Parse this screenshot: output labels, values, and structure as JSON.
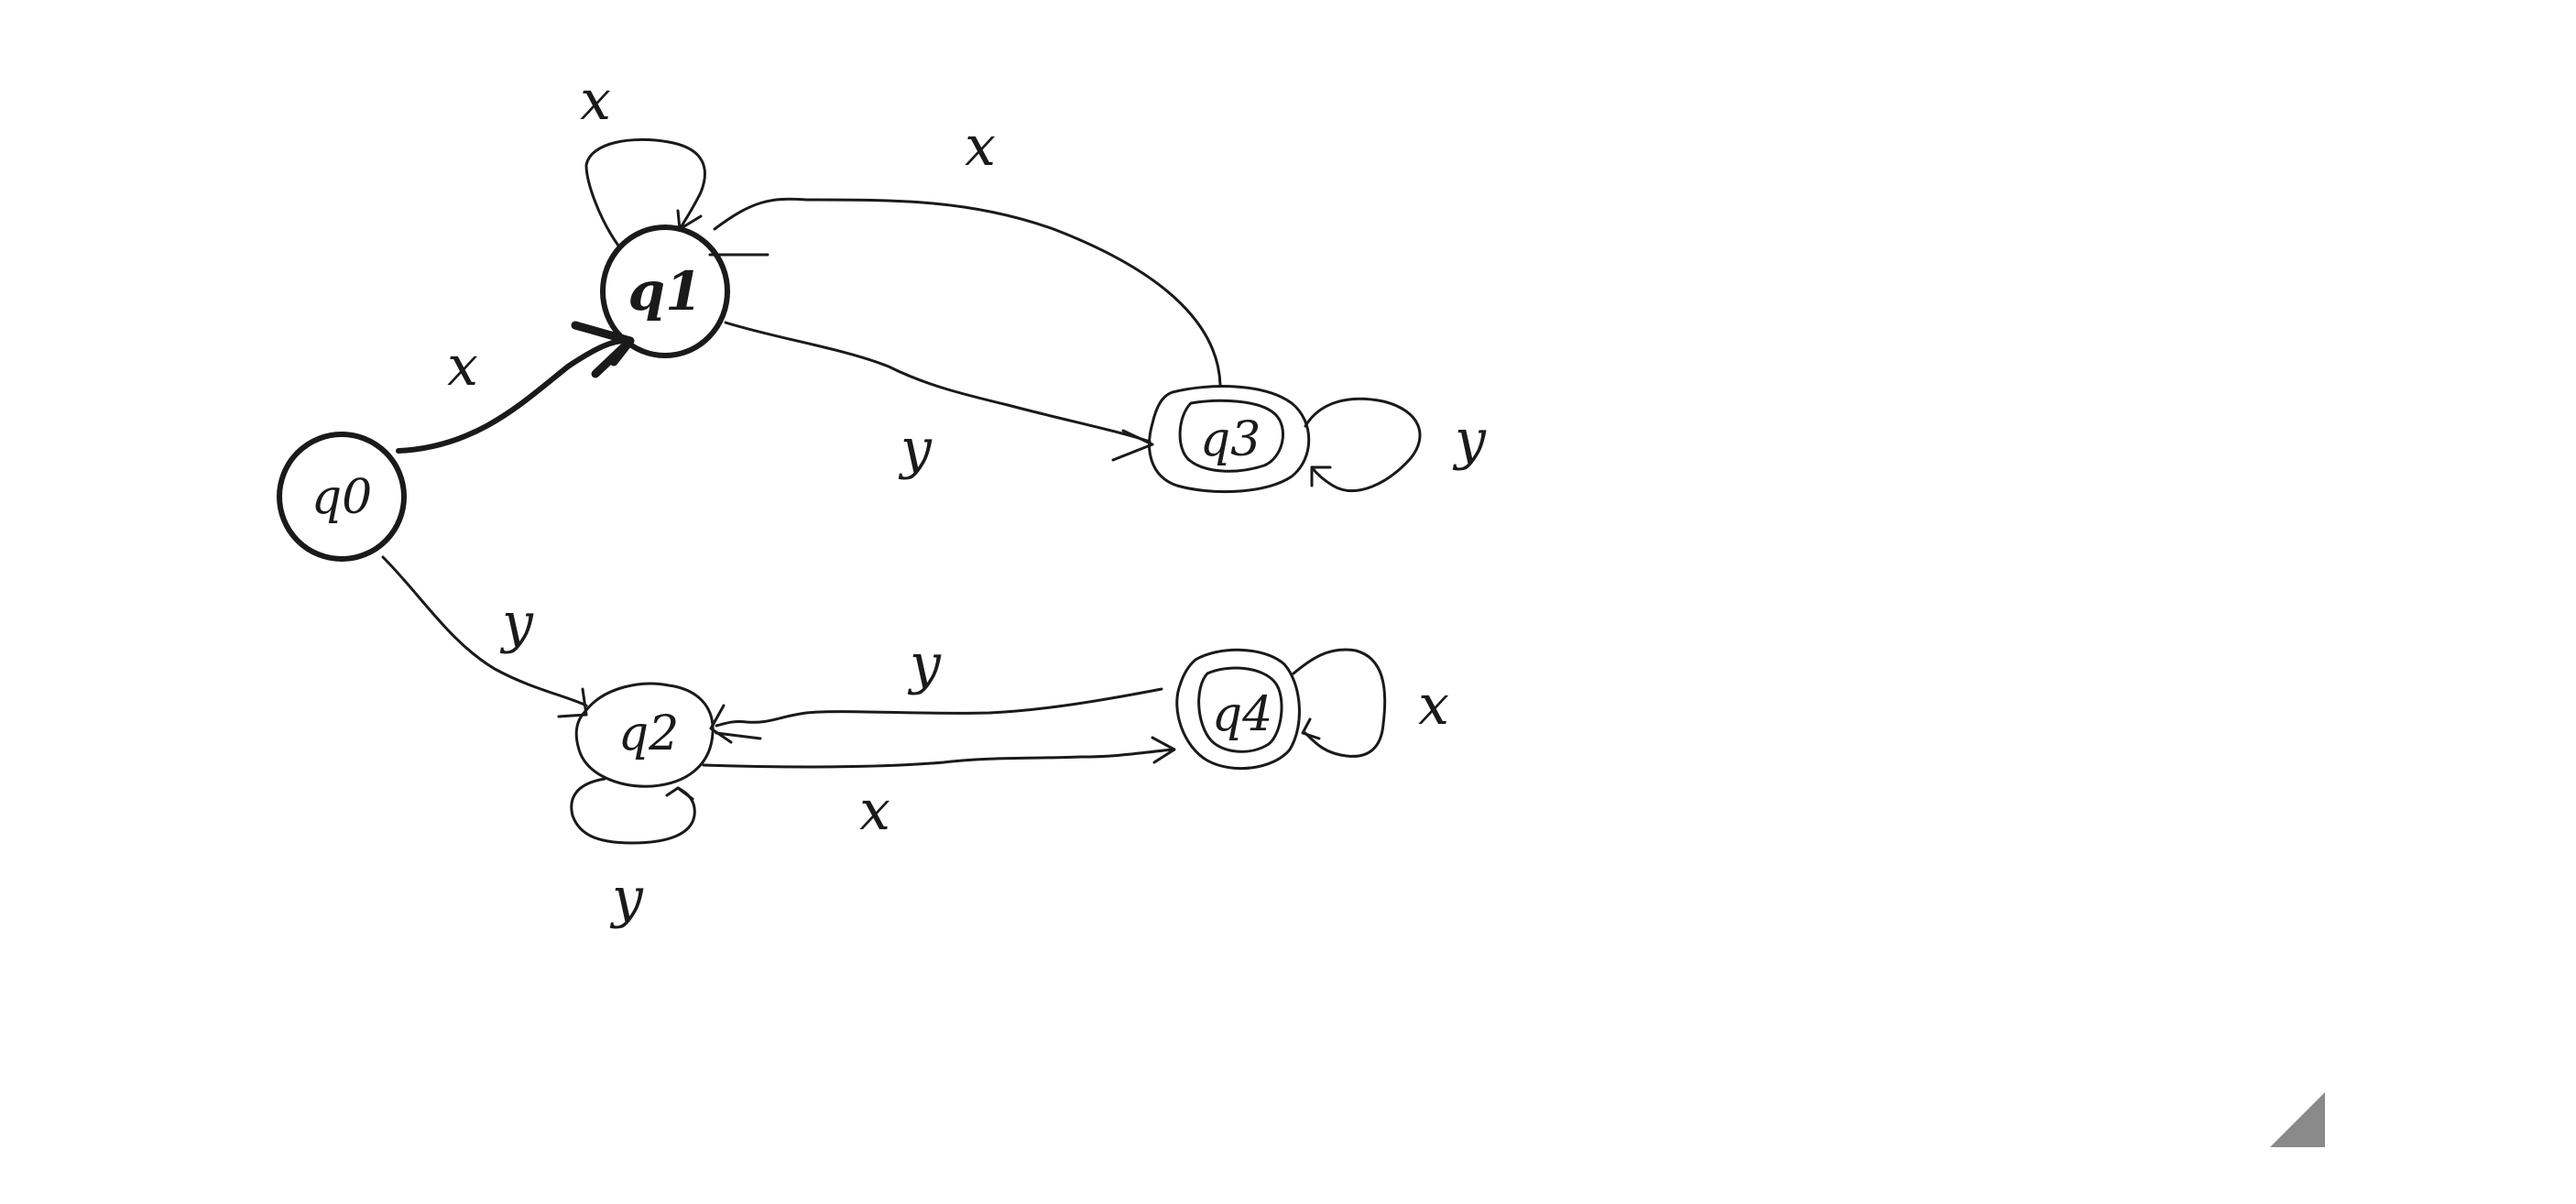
{
  "diagram": {
    "states": [
      {
        "id": "q0",
        "label": "q0",
        "start": true,
        "accepting": false
      },
      {
        "id": "q1",
        "label": "q1",
        "start": false,
        "accepting": false
      },
      {
        "id": "q2",
        "label": "q2",
        "start": false,
        "accepting": false
      },
      {
        "id": "q3",
        "label": "q3",
        "start": false,
        "accepting": true
      },
      {
        "id": "q4",
        "label": "q4",
        "start": false,
        "accepting": true
      }
    ],
    "transitions": [
      {
        "from": "q0",
        "to": "q1",
        "label": "x"
      },
      {
        "from": "q0",
        "to": "q2",
        "label": "y"
      },
      {
        "from": "q1",
        "to": "q1",
        "label": "x"
      },
      {
        "from": "q3",
        "to": "q1",
        "label": "x"
      },
      {
        "from": "q1",
        "to": "q3",
        "label": "y"
      },
      {
        "from": "q3",
        "to": "q3",
        "label": "y"
      },
      {
        "from": "q4",
        "to": "q2",
        "label": "y"
      },
      {
        "from": "q2",
        "to": "q4",
        "label": "x"
      },
      {
        "from": "q2",
        "to": "q2",
        "label": "y"
      },
      {
        "from": "q4",
        "to": "q4",
        "label": "x"
      }
    ]
  },
  "colors": {
    "ink": "#1a1a1a",
    "background": "#ffffff",
    "handle": "#8a8a8a"
  },
  "icons": {
    "resize": "resize-handle-icon"
  }
}
